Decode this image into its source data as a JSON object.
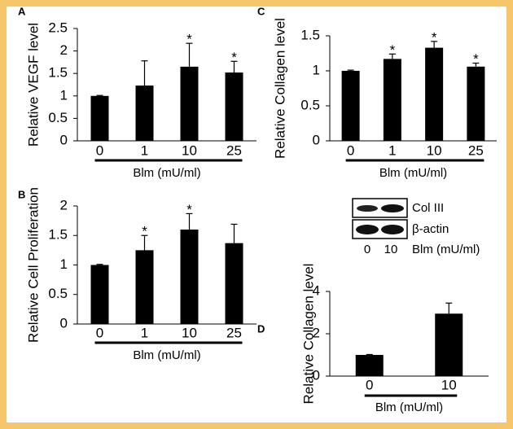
{
  "chart_data": [
    {
      "type": "bar",
      "panel": "A",
      "ylabel": "Relative VEGF level",
      "xlabel": "Blm (mU/ml)",
      "categories": [
        "0",
        "1",
        "10",
        "25"
      ],
      "series": [
        {
          "color": "#000000",
          "values": [
            1.0,
            1.23,
            1.65,
            1.52
          ],
          "errors": [
            0.01,
            0.55,
            0.52,
            0.25
          ]
        }
      ],
      "significance": [
        null,
        null,
        "*",
        "*"
      ],
      "ylim": [
        0,
        2.5
      ],
      "yticks": [
        0,
        0.5,
        1,
        1.5,
        2,
        2.5
      ]
    },
    {
      "type": "bar",
      "panel": "B",
      "ylabel": "Relative Cell Proliferation",
      "xlabel": "Blm (mU/ml)",
      "categories": [
        "0",
        "1",
        "10",
        "25"
      ],
      "series": [
        {
          "color": "#000000",
          "values": [
            1.0,
            1.25,
            1.6,
            1.37
          ],
          "errors": [
            0.01,
            0.25,
            0.27,
            0.32
          ]
        }
      ],
      "significance": [
        null,
        "*",
        "*",
        null
      ],
      "ylim": [
        0,
        2
      ],
      "yticks": [
        0,
        0.5,
        1,
        1.5,
        2
      ]
    },
    {
      "type": "bar",
      "panel": "C",
      "ylabel": "Relative Collagen level",
      "xlabel": "Blm (mU/ml)",
      "categories": [
        "0",
        "1",
        "10",
        "25"
      ],
      "series": [
        {
          "color": "#000000",
          "values": [
            1.0,
            1.17,
            1.33,
            1.06
          ],
          "errors": [
            0.01,
            0.07,
            0.09,
            0.05
          ]
        }
      ],
      "significance": [
        null,
        "*",
        "*",
        "*"
      ],
      "ylim": [
        0,
        1.5
      ],
      "yticks": [
        0,
        0.5,
        1,
        1.5
      ]
    },
    {
      "type": "bar",
      "panel": "D",
      "ylabel": "Relative Collagen level",
      "xlabel": "Blm (mU/ml)",
      "categories": [
        "0",
        "10"
      ],
      "series": [
        {
          "color": "#000000",
          "values": [
            1.0,
            2.95
          ],
          "errors": [
            0.02,
            0.5
          ]
        }
      ],
      "significance": [
        null,
        null
      ],
      "ylim": [
        0,
        4
      ],
      "yticks": [
        0,
        2,
        4
      ]
    }
  ],
  "blot": {
    "bands": [
      "Col III",
      "β-actin"
    ],
    "lanes": [
      "0",
      "10"
    ],
    "label": "Blm (mU/ml)"
  }
}
